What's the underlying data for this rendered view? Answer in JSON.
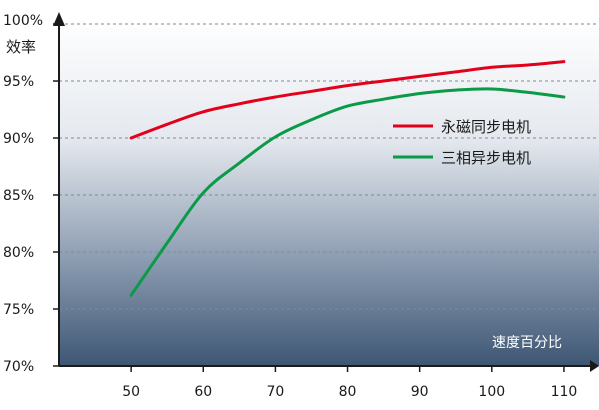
{
  "chart_data": {
    "type": "line",
    "title": "",
    "xlabel": "速度百分比",
    "ylabel": "效率",
    "xlim": [
      40,
      115
    ],
    "ylim": [
      70,
      100
    ],
    "x_ticks": [
      50,
      60,
      70,
      80,
      90,
      100,
      110
    ],
    "y_ticks": [
      100,
      95,
      90,
      85,
      80,
      75,
      70
    ],
    "y_tick_labels": [
      "100%",
      "95%",
      "90%",
      "85%",
      "80%",
      "75%",
      "70%"
    ],
    "grid": "horizontal dashed",
    "legend_position": "right",
    "series": [
      {
        "name": "永磁同步电机",
        "color": "#e3001b",
        "x": [
          50,
          55,
          60,
          65,
          70,
          75,
          80,
          85,
          90,
          95,
          100,
          105,
          110
        ],
        "y": [
          90.0,
          91.2,
          92.3,
          93.0,
          93.6,
          94.1,
          94.6,
          95.0,
          95.4,
          95.8,
          96.2,
          96.4,
          96.7
        ]
      },
      {
        "name": "三相异步电机",
        "color": "#0a9a48",
        "x": [
          50,
          55,
          60,
          65,
          70,
          75,
          80,
          85,
          90,
          95,
          100,
          105,
          110
        ],
        "y": [
          76.2,
          80.8,
          85.2,
          87.8,
          90.1,
          91.6,
          92.8,
          93.4,
          93.9,
          94.2,
          94.3,
          94.0,
          93.6
        ]
      }
    ]
  }
}
